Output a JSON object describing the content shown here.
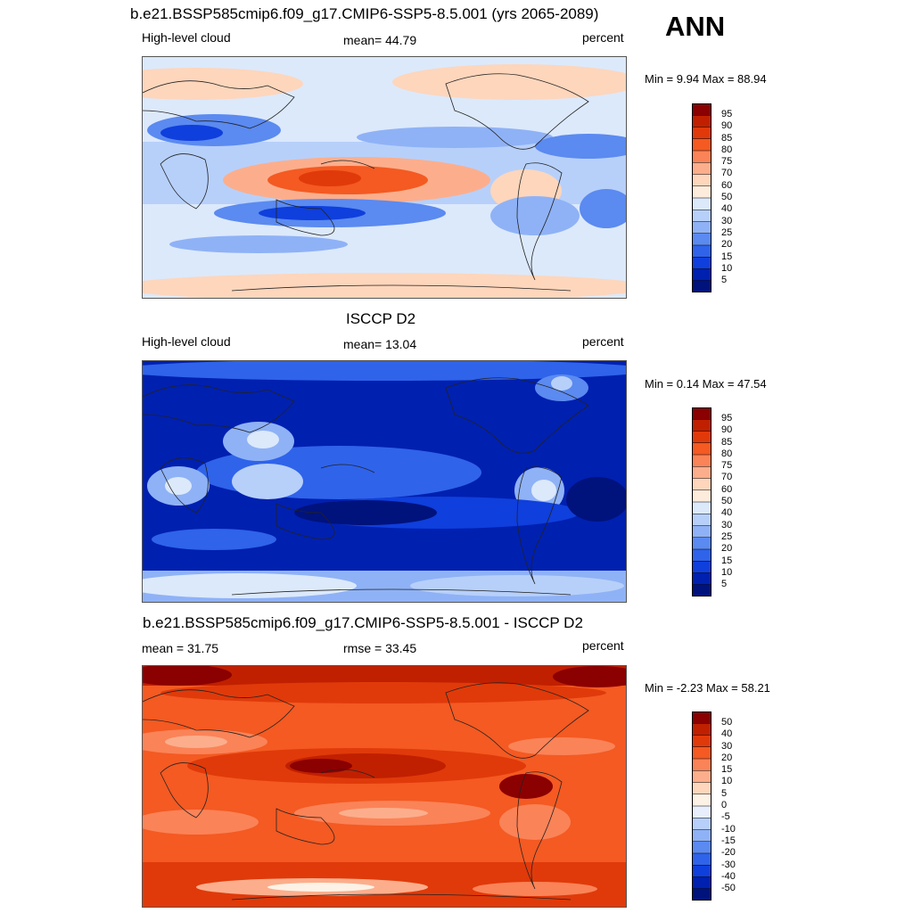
{
  "season": "ANN",
  "panels": [
    {
      "title": "b.e21.BSSP585cmip6.f09_g17.CMIP6-SSP5-8.5.001 (yrs 2065-2089)",
      "left_label": "High-level cloud",
      "center_label": "mean=  44.79",
      "right_label": "percent",
      "minmax": "Min =   9.94 Max =  88.94"
    },
    {
      "title": "ISCCP D2",
      "left_label": "High-level cloud",
      "center_label": "mean=  13.04",
      "right_label": "percent",
      "minmax": "Min =   0.14 Max =  47.54"
    },
    {
      "title": "b.e21.BSSP585cmip6.f09_g17.CMIP6-SSP5-8.5.001 - ISCCP D2",
      "left_label": "mean =  31.75",
      "center_label": "rmse =  33.45",
      "right_label": "percent",
      "minmax": "Min =  -2.23 Max =  58.21"
    }
  ],
  "chart_data": [
    {
      "type": "heatmap",
      "title": "b.e21.BSSP585cmip6.f09_g17.CMIP6-SSP5-8.5.001 (yrs 2065-2089)",
      "variable": "High-level cloud",
      "units": "percent",
      "mean": 44.79,
      "min": 9.94,
      "max": 88.94,
      "colorbar_levels": [
        "95",
        "90",
        "85",
        "80",
        "75",
        "70",
        "60",
        "50",
        "40",
        "30",
        "25",
        "20",
        "15",
        "10",
        "5"
      ],
      "colorbar_colors": [
        "#8b0000",
        "#c02000",
        "#e03a0a",
        "#f45a22",
        "#fb8358",
        "#fcae8c",
        "#fdd6bc",
        "#fdecdc",
        "#dce9fb",
        "#b7d0fa",
        "#8fb2f6",
        "#5b8af0",
        "#2f63ea",
        "#0f3fdc",
        "#0020b0",
        "#00127c"
      ],
      "note": "Global lat-lon contour map of annual high-level cloud fraction"
    },
    {
      "type": "heatmap",
      "title": "ISCCP D2",
      "variable": "High-level cloud",
      "units": "percent",
      "mean": 13.04,
      "min": 0.14,
      "max": 47.54,
      "colorbar_levels": [
        "95",
        "90",
        "85",
        "80",
        "75",
        "70",
        "60",
        "50",
        "40",
        "30",
        "25",
        "20",
        "15",
        "10",
        "5"
      ],
      "colorbar_colors": [
        "#8b0000",
        "#c02000",
        "#e03a0a",
        "#f45a22",
        "#fb8358",
        "#fcae8c",
        "#fdd6bc",
        "#fdecdc",
        "#dce9fb",
        "#b7d0fa",
        "#8fb2f6",
        "#5b8af0",
        "#2f63ea",
        "#0f3fdc",
        "#0020b0",
        "#00127c"
      ],
      "note": "Global lat-lon contour map of observed annual high-level cloud fraction"
    },
    {
      "type": "heatmap",
      "title": "b.e21.BSSP585cmip6.f09_g17.CMIP6-SSP5-8.5.001 - ISCCP D2",
      "variable": "High-level cloud difference",
      "units": "percent",
      "mean": 31.75,
      "rmse": 33.45,
      "min": -2.23,
      "max": 58.21,
      "colorbar_levels": [
        "50",
        "40",
        "30",
        "20",
        "15",
        "10",
        "5",
        "0",
        "-5",
        "-10",
        "-15",
        "-20",
        "-30",
        "-40",
        "-50"
      ],
      "colorbar_colors": [
        "#8b0000",
        "#c02000",
        "#e03a0a",
        "#f45a22",
        "#fb8358",
        "#fcae8c",
        "#fdd6bc",
        "#fdf2e6",
        "#e8eefc",
        "#b7d0fa",
        "#8fb2f6",
        "#5b8af0",
        "#2f63ea",
        "#0f3fdc",
        "#0020b0",
        "#00127c"
      ],
      "note": "Global lat-lon contour map of model minus observation difference"
    }
  ]
}
